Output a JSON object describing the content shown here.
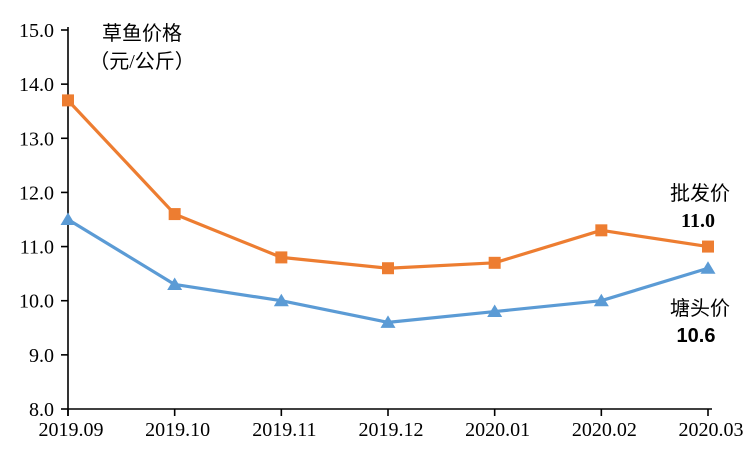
{
  "chart_data": {
    "type": "line",
    "title_lines": [
      "草鱼价格",
      "（元/公斤）"
    ],
    "categories": [
      "2019.09",
      "2019.10",
      "2019.11",
      "2019.12",
      "2020.01",
      "2020.02",
      "2020.03"
    ],
    "series": [
      {
        "name": "批发价",
        "marker": "square",
        "color": "#ED7D31",
        "values": [
          13.7,
          11.6,
          10.8,
          10.6,
          10.7,
          11.3,
          11.0
        ]
      },
      {
        "name": "塘头价",
        "marker": "triangle",
        "color": "#5B9BD5",
        "values": [
          11.5,
          10.3,
          10.0,
          9.6,
          9.8,
          10.0,
          10.6
        ]
      }
    ],
    "ylim": [
      8.0,
      15.0
    ],
    "ytick_step": 1.0,
    "ytick_labels": [
      "8.0",
      "9.0",
      "10.0",
      "11.0",
      "12.0",
      "13.0",
      "14.0",
      "15.0"
    ],
    "xlabel": "",
    "ylabel": "",
    "grid": false,
    "legend_position": "none",
    "axis_color": "#000000",
    "annotations": [
      {
        "label": "批发价",
        "value": "11.0",
        "position": "above-last-point"
      },
      {
        "label": "塘头价",
        "value": "10.6",
        "position": "below-last-point"
      }
    ]
  }
}
